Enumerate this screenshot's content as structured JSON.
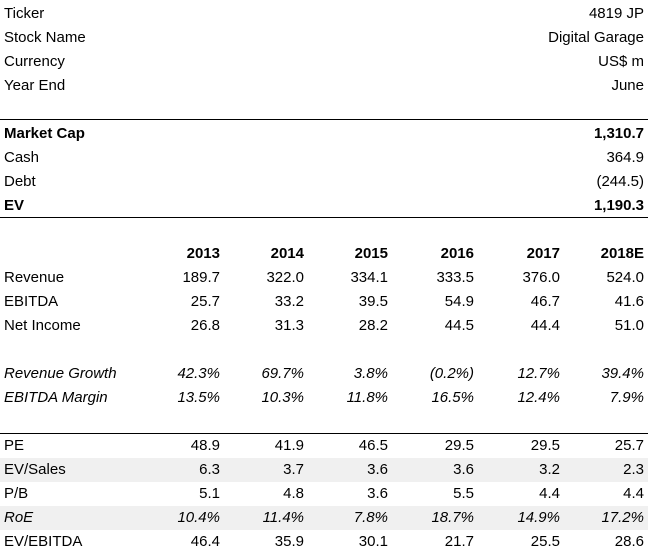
{
  "info": {
    "ticker_label": "Ticker",
    "ticker_value": "4819 JP",
    "name_label": "Stock Name",
    "name_value": "Digital Garage",
    "currency_label": "Currency",
    "currency_value": "US$ m",
    "yearend_label": "Year End",
    "yearend_value": "June"
  },
  "valuation": {
    "mktcap_label": "Market Cap",
    "mktcap_value": "1,310.7",
    "cash_label": "Cash",
    "cash_value": "364.9",
    "debt_label": "Debt",
    "debt_value": "(244.5)",
    "ev_label": "EV",
    "ev_value": "1,190.3"
  },
  "years": [
    "2013",
    "2014",
    "2015",
    "2016",
    "2017",
    "2018E"
  ],
  "financials": [
    {
      "label": "Revenue",
      "values": [
        "189.7",
        "322.0",
        "334.1",
        "333.5",
        "376.0",
        "524.0"
      ]
    },
    {
      "label": "EBITDA",
      "values": [
        "25.7",
        "33.2",
        "39.5",
        "54.9",
        "46.7",
        "41.6"
      ]
    },
    {
      "label": "Net Income",
      "values": [
        "26.8",
        "31.3",
        "28.2",
        "44.5",
        "44.4",
        "51.0"
      ]
    }
  ],
  "ratios": [
    {
      "label": "Revenue Growth",
      "values": [
        "42.3%",
        "69.7%",
        "3.8%",
        "(0.2%)",
        "12.7%",
        "39.4%"
      ]
    },
    {
      "label": "EBITDA Margin",
      "values": [
        "13.5%",
        "10.3%",
        "11.8%",
        "16.5%",
        "12.4%",
        "7.9%"
      ]
    }
  ],
  "multiples": [
    {
      "label": "PE",
      "values": [
        "48.9",
        "41.9",
        "46.5",
        "29.5",
        "29.5",
        "25.7"
      ]
    },
    {
      "label": "EV/Sales",
      "values": [
        "6.3",
        "3.7",
        "3.6",
        "3.6",
        "3.2",
        "2.3"
      ]
    },
    {
      "label": "P/B",
      "values": [
        "5.1",
        "4.8",
        "3.6",
        "5.5",
        "4.4",
        "4.4"
      ]
    },
    {
      "label": "RoE",
      "values": [
        "10.4%",
        "11.4%",
        "7.8%",
        "18.7%",
        "14.9%",
        "17.2%"
      ]
    },
    {
      "label": "EV/EBITDA",
      "values": [
        "46.4",
        "35.9",
        "30.1",
        "21.7",
        "25.5",
        "28.6"
      ]
    }
  ]
}
